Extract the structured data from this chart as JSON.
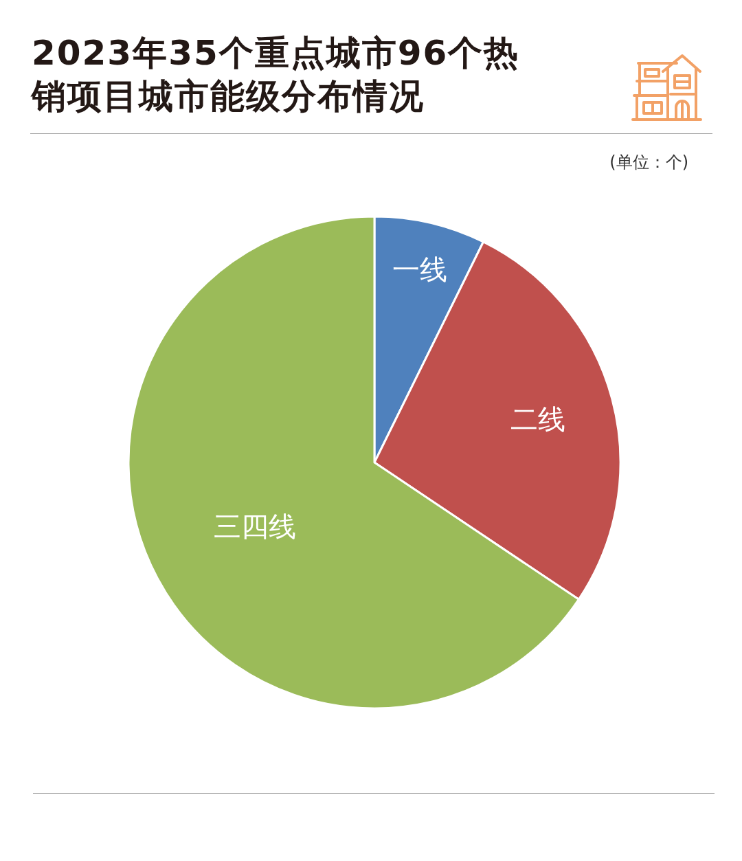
{
  "chart_data": {
    "type": "pie",
    "title": "2023年35个重点城市96个热销项目城市能级分布情况",
    "categories": [
      "一线",
      "二线",
      "三四线"
    ],
    "values": [
      7.3,
      27.1,
      65.6
    ],
    "colors": [
      "#4f81bd",
      "#c0504d",
      "#9bbb59"
    ],
    "annotations": [
      "(单位：个)"
    ]
  }
}
